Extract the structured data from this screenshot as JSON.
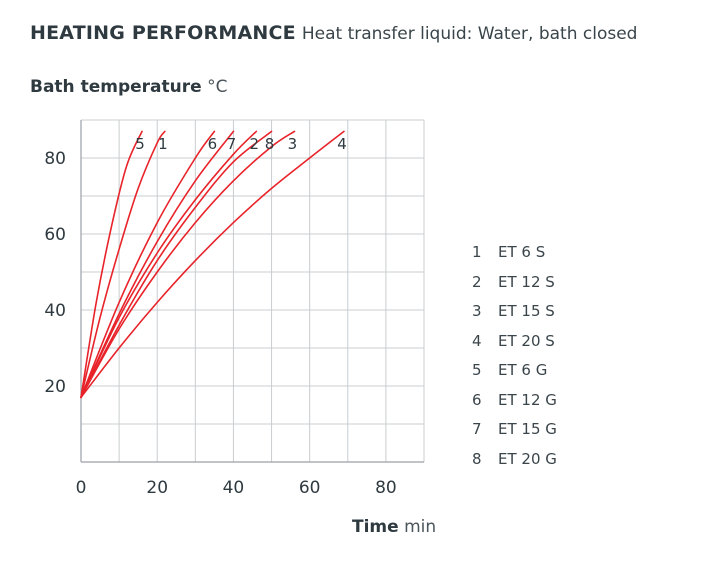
{
  "title": {
    "bold": "HEATING PERFORMANCE",
    "subtitle": "Heat transfer liquid: Water, bath closed"
  },
  "y_axis": {
    "label": "Bath temperature",
    "unit": "°C"
  },
  "x_axis": {
    "label": "Time",
    "unit": "min"
  },
  "legend": [
    {
      "num": "1",
      "label": "ET 6 S"
    },
    {
      "num": "2",
      "label": "ET 12 S"
    },
    {
      "num": "3",
      "label": "ET 15 S"
    },
    {
      "num": "4",
      "label": "ET 20 S"
    },
    {
      "num": "5",
      "label": "ET 6 G"
    },
    {
      "num": "6",
      "label": "ET 12 G"
    },
    {
      "num": "7",
      "label": "ET 15 G"
    },
    {
      "num": "8",
      "label": "ET 20 G"
    }
  ],
  "colors": {
    "curve": "#e8232a",
    "grid": "#c9cdd0",
    "text": "#2f3a40"
  },
  "chart_data": {
    "type": "line",
    "title": "HEATING PERFORMANCE",
    "subtitle": "Heat transfer liquid: Water, bath closed",
    "xlabel": "Time min",
    "ylabel": "Bath temperature °C",
    "xlim": [
      0,
      90
    ],
    "ylim": [
      0,
      90
    ],
    "xticks": [
      0,
      20,
      40,
      60,
      80
    ],
    "yticks": [
      20,
      40,
      60,
      80
    ],
    "grid": true,
    "legend_position": "right",
    "series": [
      {
        "name": "1",
        "legend": "ET 6 S",
        "x": [
          0,
          5,
          10,
          15,
          20,
          22
        ],
        "y": [
          17,
          38,
          56,
          72,
          84,
          87
        ]
      },
      {
        "name": "2",
        "legend": "ET 12 S",
        "x": [
          0,
          10,
          20,
          30,
          40,
          46
        ],
        "y": [
          17,
          38,
          55,
          69,
          81,
          87
        ]
      },
      {
        "name": "3",
        "legend": "ET 15 S",
        "x": [
          0,
          10,
          20,
          30,
          40,
          50,
          56
        ],
        "y": [
          17,
          35,
          50,
          63,
          74,
          83,
          87
        ]
      },
      {
        "name": "4",
        "legend": "ET 20 S",
        "x": [
          0,
          10,
          20,
          30,
          40,
          50,
          60,
          69
        ],
        "y": [
          17,
          30,
          42,
          53,
          63,
          72,
          80,
          87
        ]
      },
      {
        "name": "5",
        "legend": "ET 6 G",
        "x": [
          0,
          4,
          8,
          12,
          16
        ],
        "y": [
          17,
          42,
          62,
          78,
          87
        ]
      },
      {
        "name": "6",
        "legend": "ET 12 G",
        "x": [
          0,
          10,
          20,
          30,
          35
        ],
        "y": [
          17,
          42,
          63,
          80,
          87
        ]
      },
      {
        "name": "7",
        "legend": "ET 15 G",
        "x": [
          0,
          10,
          20,
          30,
          40,
          40
        ],
        "y": [
          17,
          39,
          58,
          74,
          87,
          87
        ]
      },
      {
        "name": "8",
        "legend": "ET 20 G",
        "x": [
          0,
          10,
          20,
          30,
          40,
          50
        ],
        "y": [
          17,
          36,
          53,
          67,
          79,
          87
        ]
      }
    ],
    "curve_labels_order": [
      "5",
      "1",
      "6",
      "7",
      "2",
      "8",
      "3",
      "4"
    ]
  }
}
